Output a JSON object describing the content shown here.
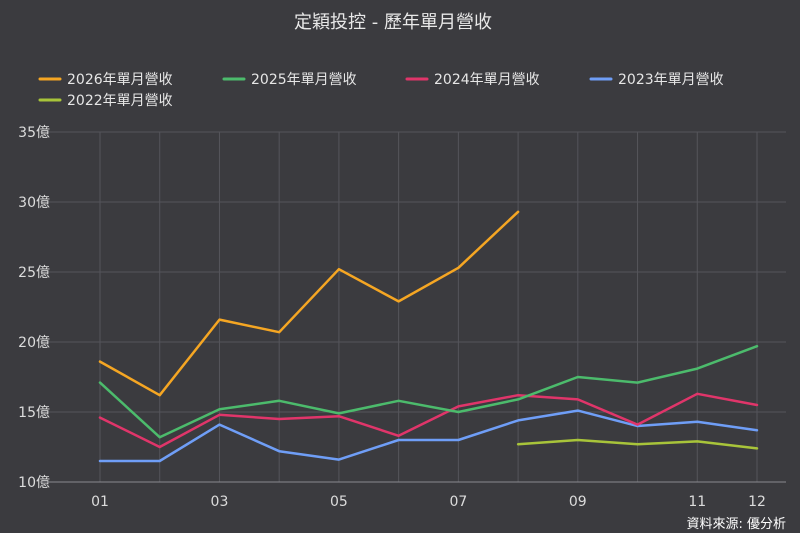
{
  "chart_data": {
    "type": "line",
    "title": "定穎投控 - 歷年單月營收",
    "source": "資料來源: 優分析",
    "x": [
      1,
      2,
      3,
      4,
      5,
      6,
      7,
      8,
      9,
      10,
      11,
      12
    ],
    "xticks": [
      {
        "x": 1,
        "label": "01"
      },
      {
        "x": 3,
        "label": "03"
      },
      {
        "x": 5,
        "label": "05"
      },
      {
        "x": 7,
        "label": "07"
      },
      {
        "x": 9,
        "label": "09"
      },
      {
        "x": 11,
        "label": "11"
      },
      {
        "x": 12,
        "label": "12"
      }
    ],
    "yticks": [
      {
        "v": 10,
        "label": "10億"
      },
      {
        "v": 15,
        "label": "15億"
      },
      {
        "v": 20,
        "label": "20億"
      },
      {
        "v": 25,
        "label": "25億"
      },
      {
        "v": 30,
        "label": "30億"
      },
      {
        "v": 35,
        "label": "35億"
      }
    ],
    "ylim": [
      10,
      35
    ],
    "xlim": [
      1,
      12
    ],
    "grid": true,
    "legend_position": "top",
    "series": [
      {
        "name": "2026年單月營收",
        "color": "#f5a623",
        "values": [
          18.6,
          16.2,
          21.6,
          20.7,
          25.2,
          22.9,
          25.3,
          29.3,
          null,
          null,
          null,
          null
        ]
      },
      {
        "name": "2025年單月營收",
        "color": "#4cbb6c",
        "values": [
          17.1,
          13.2,
          15.2,
          15.8,
          14.9,
          15.8,
          15.0,
          15.9,
          17.5,
          17.1,
          18.1,
          19.7
        ]
      },
      {
        "name": "2024年單月營收",
        "color": "#e0356a",
        "values": [
          14.6,
          12.5,
          14.8,
          14.5,
          14.7,
          13.3,
          15.4,
          16.2,
          15.9,
          14.1,
          16.3,
          15.5
        ]
      },
      {
        "name": "2023年單月營收",
        "color": "#6f9ef7",
        "values": [
          11.5,
          11.5,
          14.1,
          12.2,
          11.6,
          13.0,
          13.0,
          14.4,
          15.1,
          14.0,
          14.3,
          13.7
        ]
      },
      {
        "name": "2022年單月營收",
        "color": "#a8c43a",
        "values": [
          null,
          null,
          null,
          null,
          null,
          null,
          null,
          12.7,
          13.0,
          12.7,
          12.9,
          12.4
        ]
      }
    ]
  }
}
